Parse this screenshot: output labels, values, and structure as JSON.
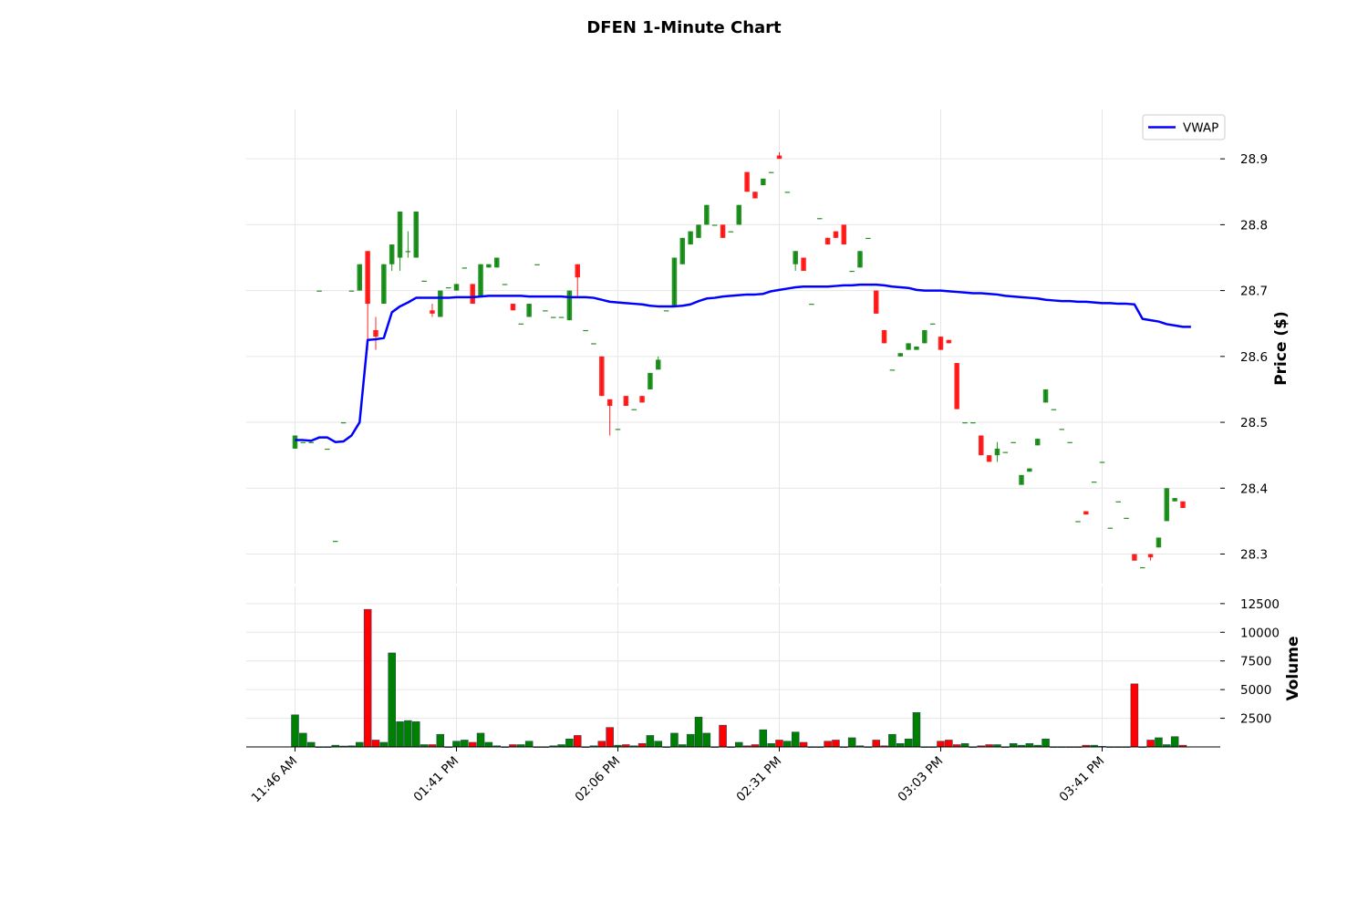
{
  "chart_data": {
    "type": "candlestick",
    "title": "DFEN 1-Minute Chart",
    "ylabel": "Price ($)",
    "volume_label": "Volume",
    "ylim": [
      28.255,
      28.975
    ],
    "yticks": [
      28.3,
      28.4,
      28.5,
      28.6,
      28.7,
      28.8,
      28.9
    ],
    "volume_ylim": [
      0,
      14000
    ],
    "volume_ticks": [
      2500,
      5000,
      7500,
      10000,
      12500
    ],
    "xtick_labels": [
      {
        "index": 0,
        "label": "11:46 AM"
      },
      {
        "index": 20,
        "label": "01:41 PM"
      },
      {
        "index": 40,
        "label": "02:06 PM"
      },
      {
        "index": 60,
        "label": "02:31 PM"
      },
      {
        "index": 80,
        "label": "03:03 PM"
      },
      {
        "index": 100,
        "label": "03:41 PM"
      }
    ],
    "legend": {
      "label": "VWAP",
      "location": "upper right"
    },
    "colors": {
      "up": "#008000",
      "down": "#ff0000",
      "vwap": "#0000ff"
    },
    "grid": true,
    "candles": [
      [
        28.46,
        28.48,
        28.46,
        28.48,
        2800
      ],
      [
        28.47,
        28.47,
        28.47,
        28.47,
        1200
      ],
      [
        28.47,
        28.47,
        28.47,
        28.47,
        400
      ],
      [
        28.7,
        28.7,
        28.7,
        28.7,
        0
      ],
      [
        28.46,
        28.46,
        28.46,
        28.46,
        0
      ],
      [
        28.32,
        28.32,
        28.32,
        28.32,
        150
      ],
      [
        28.5,
        28.5,
        28.5,
        28.5,
        80
      ],
      [
        28.7,
        28.7,
        28.7,
        28.7,
        100
      ],
      [
        28.7,
        28.74,
        28.7,
        28.74,
        400
      ],
      [
        28.76,
        28.76,
        28.61,
        28.68,
        12000
      ],
      [
        28.64,
        28.66,
        28.61,
        28.63,
        600
      ],
      [
        28.68,
        28.74,
        28.68,
        28.74,
        400
      ],
      [
        28.74,
        28.77,
        28.73,
        28.77,
        8200
      ],
      [
        28.75,
        28.82,
        28.73,
        28.82,
        2200
      ],
      [
        28.76,
        28.79,
        28.75,
        28.76,
        2300
      ],
      [
        28.75,
        28.82,
        28.75,
        28.82,
        2200
      ],
      [
        28.715,
        28.715,
        28.715,
        28.715,
        200
      ],
      [
        28.67,
        28.68,
        28.66,
        28.665,
        200
      ],
      [
        28.66,
        28.7,
        28.66,
        28.7,
        1100
      ],
      [
        28.705,
        28.705,
        28.705,
        28.705,
        0
      ],
      [
        28.7,
        28.71,
        28.7,
        28.71,
        500
      ],
      [
        28.735,
        28.735,
        28.735,
        28.735,
        600
      ],
      [
        28.71,
        28.71,
        28.68,
        28.68,
        400
      ],
      [
        28.69,
        28.74,
        28.69,
        28.74,
        1200
      ],
      [
        28.735,
        28.74,
        28.735,
        28.74,
        400
      ],
      [
        28.735,
        28.75,
        28.735,
        28.75,
        100
      ],
      [
        28.71,
        28.71,
        28.71,
        28.71,
        0
      ],
      [
        28.68,
        28.68,
        28.67,
        28.67,
        200
      ],
      [
        28.65,
        28.65,
        28.65,
        28.65,
        200
      ],
      [
        28.66,
        28.68,
        28.66,
        28.68,
        500
      ],
      [
        28.74,
        28.74,
        28.74,
        28.74,
        0
      ],
      [
        28.67,
        28.67,
        28.67,
        28.67,
        0
      ],
      [
        28.66,
        28.66,
        28.66,
        28.66,
        100
      ],
      [
        28.66,
        28.66,
        28.66,
        28.66,
        200
      ],
      [
        28.655,
        28.7,
        28.655,
        28.7,
        700
      ],
      [
        28.74,
        28.74,
        28.69,
        28.72,
        1000
      ],
      [
        28.64,
        28.64,
        28.64,
        28.64,
        0
      ],
      [
        28.62,
        28.62,
        28.62,
        28.62,
        100
      ],
      [
        28.6,
        28.6,
        28.54,
        28.54,
        500
      ],
      [
        28.535,
        28.535,
        28.48,
        28.525,
        1700
      ],
      [
        28.49,
        28.49,
        28.49,
        28.49,
        150
      ],
      [
        28.54,
        28.54,
        28.525,
        28.525,
        200
      ],
      [
        28.52,
        28.52,
        28.52,
        28.52,
        100
      ],
      [
        28.54,
        28.54,
        28.53,
        28.53,
        300
      ],
      [
        28.55,
        28.575,
        28.55,
        28.575,
        1000
      ],
      [
        28.58,
        28.6,
        28.58,
        28.595,
        500
      ],
      [
        28.67,
        28.67,
        28.67,
        28.67,
        0
      ],
      [
        28.675,
        28.75,
        28.675,
        28.75,
        1200
      ],
      [
        28.74,
        28.78,
        28.74,
        28.78,
        200
      ],
      [
        28.77,
        28.79,
        28.77,
        28.79,
        1100
      ],
      [
        28.78,
        28.8,
        28.78,
        28.8,
        2600
      ],
      [
        28.8,
        28.83,
        28.8,
        28.83,
        1200
      ],
      [
        28.8,
        28.8,
        28.8,
        28.8,
        0
      ],
      [
        28.8,
        28.8,
        28.78,
        28.78,
        1900
      ],
      [
        28.79,
        28.79,
        28.79,
        28.79,
        0
      ],
      [
        28.8,
        28.83,
        28.8,
        28.83,
        400
      ],
      [
        28.88,
        28.88,
        28.85,
        28.85,
        100
      ],
      [
        28.85,
        28.85,
        28.84,
        28.84,
        200
      ],
      [
        28.86,
        28.87,
        28.86,
        28.87,
        1500
      ],
      [
        28.88,
        28.88,
        28.88,
        28.88,
        300
      ],
      [
        28.905,
        28.91,
        28.9,
        28.9,
        600
      ],
      [
        28.85,
        28.85,
        28.85,
        28.85,
        500
      ],
      [
        28.74,
        28.76,
        28.73,
        28.76,
        1300
      ],
      [
        28.75,
        28.75,
        28.73,
        28.73,
        400
      ],
      [
        28.68,
        28.68,
        28.68,
        28.68,
        0
      ],
      [
        28.81,
        28.81,
        28.81,
        28.81,
        0
      ],
      [
        28.78,
        28.78,
        28.77,
        28.77,
        500
      ],
      [
        28.79,
        28.79,
        28.78,
        28.78,
        600
      ],
      [
        28.8,
        28.8,
        28.77,
        28.77,
        0
      ],
      [
        28.73,
        28.73,
        28.73,
        28.73,
        800
      ],
      [
        28.735,
        28.76,
        28.735,
        28.76,
        100
      ],
      [
        28.78,
        28.78,
        28.78,
        28.78,
        0
      ],
      [
        28.7,
        28.7,
        28.665,
        28.665,
        600
      ],
      [
        28.64,
        28.64,
        28.62,
        28.62,
        100
      ],
      [
        28.58,
        28.58,
        28.58,
        28.58,
        1100
      ],
      [
        28.6,
        28.605,
        28.6,
        28.605,
        300
      ],
      [
        28.61,
        28.62,
        28.61,
        28.62,
        700
      ],
      [
        28.61,
        28.615,
        28.61,
        28.615,
        3000
      ],
      [
        28.62,
        28.64,
        28.62,
        28.64,
        0
      ],
      [
        28.65,
        28.65,
        28.65,
        28.65,
        0
      ],
      [
        28.63,
        28.63,
        28.61,
        28.61,
        500
      ],
      [
        28.625,
        28.625,
        28.62,
        28.62,
        600
      ],
      [
        28.59,
        28.59,
        28.52,
        28.52,
        200
      ],
      [
        28.5,
        28.5,
        28.5,
        28.5,
        300
      ],
      [
        28.5,
        28.5,
        28.5,
        28.5,
        0
      ],
      [
        28.48,
        28.48,
        28.45,
        28.45,
        100
      ],
      [
        28.45,
        28.45,
        28.44,
        28.44,
        200
      ],
      [
        28.45,
        28.47,
        28.44,
        28.46,
        200
      ],
      [
        28.455,
        28.455,
        28.455,
        28.455,
        0
      ],
      [
        28.47,
        28.47,
        28.47,
        28.47,
        300
      ],
      [
        28.405,
        28.42,
        28.405,
        28.42,
        150
      ],
      [
        28.425,
        28.43,
        28.425,
        28.43,
        300
      ],
      [
        28.465,
        28.475,
        28.465,
        28.475,
        150
      ],
      [
        28.53,
        28.55,
        28.53,
        28.55,
        700
      ],
      [
        28.52,
        28.52,
        28.52,
        28.52,
        0
      ],
      [
        28.49,
        28.49,
        28.49,
        28.49,
        0
      ],
      [
        28.47,
        28.47,
        28.47,
        28.47,
        0
      ],
      [
        28.35,
        28.35,
        28.35,
        28.35,
        0
      ],
      [
        28.365,
        28.365,
        28.36,
        28.36,
        150
      ],
      [
        28.41,
        28.41,
        28.41,
        28.41,
        150
      ],
      [
        28.44,
        28.44,
        28.44,
        28.44,
        50
      ],
      [
        28.34,
        28.34,
        28.34,
        28.34,
        0
      ],
      [
        28.38,
        28.38,
        28.38,
        28.38,
        0
      ],
      [
        28.355,
        28.355,
        28.355,
        28.355,
        0
      ],
      [
        28.3,
        28.3,
        28.29,
        28.29,
        5500
      ],
      [
        28.28,
        28.28,
        28.28,
        28.28,
        0
      ],
      [
        28.3,
        28.3,
        28.29,
        28.295,
        600
      ],
      [
        28.31,
        28.325,
        28.31,
        28.325,
        800
      ],
      [
        28.35,
        28.4,
        28.35,
        28.4,
        200
      ],
      [
        28.38,
        28.385,
        28.38,
        28.385,
        900
      ],
      [
        28.38,
        28.38,
        28.37,
        28.37,
        150
      ]
    ],
    "vwap": [
      28.473,
      28.473,
      28.472,
      28.477,
      28.477,
      28.47,
      28.471,
      28.48,
      28.5,
      28.625,
      28.626,
      28.628,
      28.667,
      28.676,
      28.682,
      28.689,
      28.689,
      28.689,
      28.689,
      28.689,
      28.69,
      28.69,
      28.69,
      28.691,
      28.692,
      28.692,
      28.692,
      28.692,
      28.692,
      28.691,
      28.691,
      28.691,
      28.691,
      28.691,
      28.69,
      28.69,
      28.69,
      28.689,
      28.686,
      28.683,
      28.682,
      28.681,
      28.68,
      28.679,
      28.677,
      28.676,
      28.676,
      28.676,
      28.677,
      28.679,
      28.684,
      28.688,
      28.689,
      28.691,
      28.692,
      28.693,
      28.694,
      28.694,
      28.695,
      28.699,
      28.701,
      28.703,
      28.705,
      28.706,
      28.706,
      28.706,
      28.706,
      28.707,
      28.708,
      28.708,
      28.709,
      28.709,
      28.709,
      28.708,
      28.706,
      28.705,
      28.704,
      28.701,
      28.7,
      28.7,
      28.7,
      28.699,
      28.698,
      28.697,
      28.696,
      28.696,
      28.695,
      28.694,
      28.692,
      28.691,
      28.69,
      28.689,
      28.688,
      28.686,
      28.685,
      28.684,
      28.684,
      28.683,
      28.683,
      28.682,
      28.681,
      28.681,
      28.68,
      28.68,
      28.679,
      28.657,
      28.655,
      28.653,
      28.649,
      28.647,
      28.645,
      28.645
    ]
  }
}
